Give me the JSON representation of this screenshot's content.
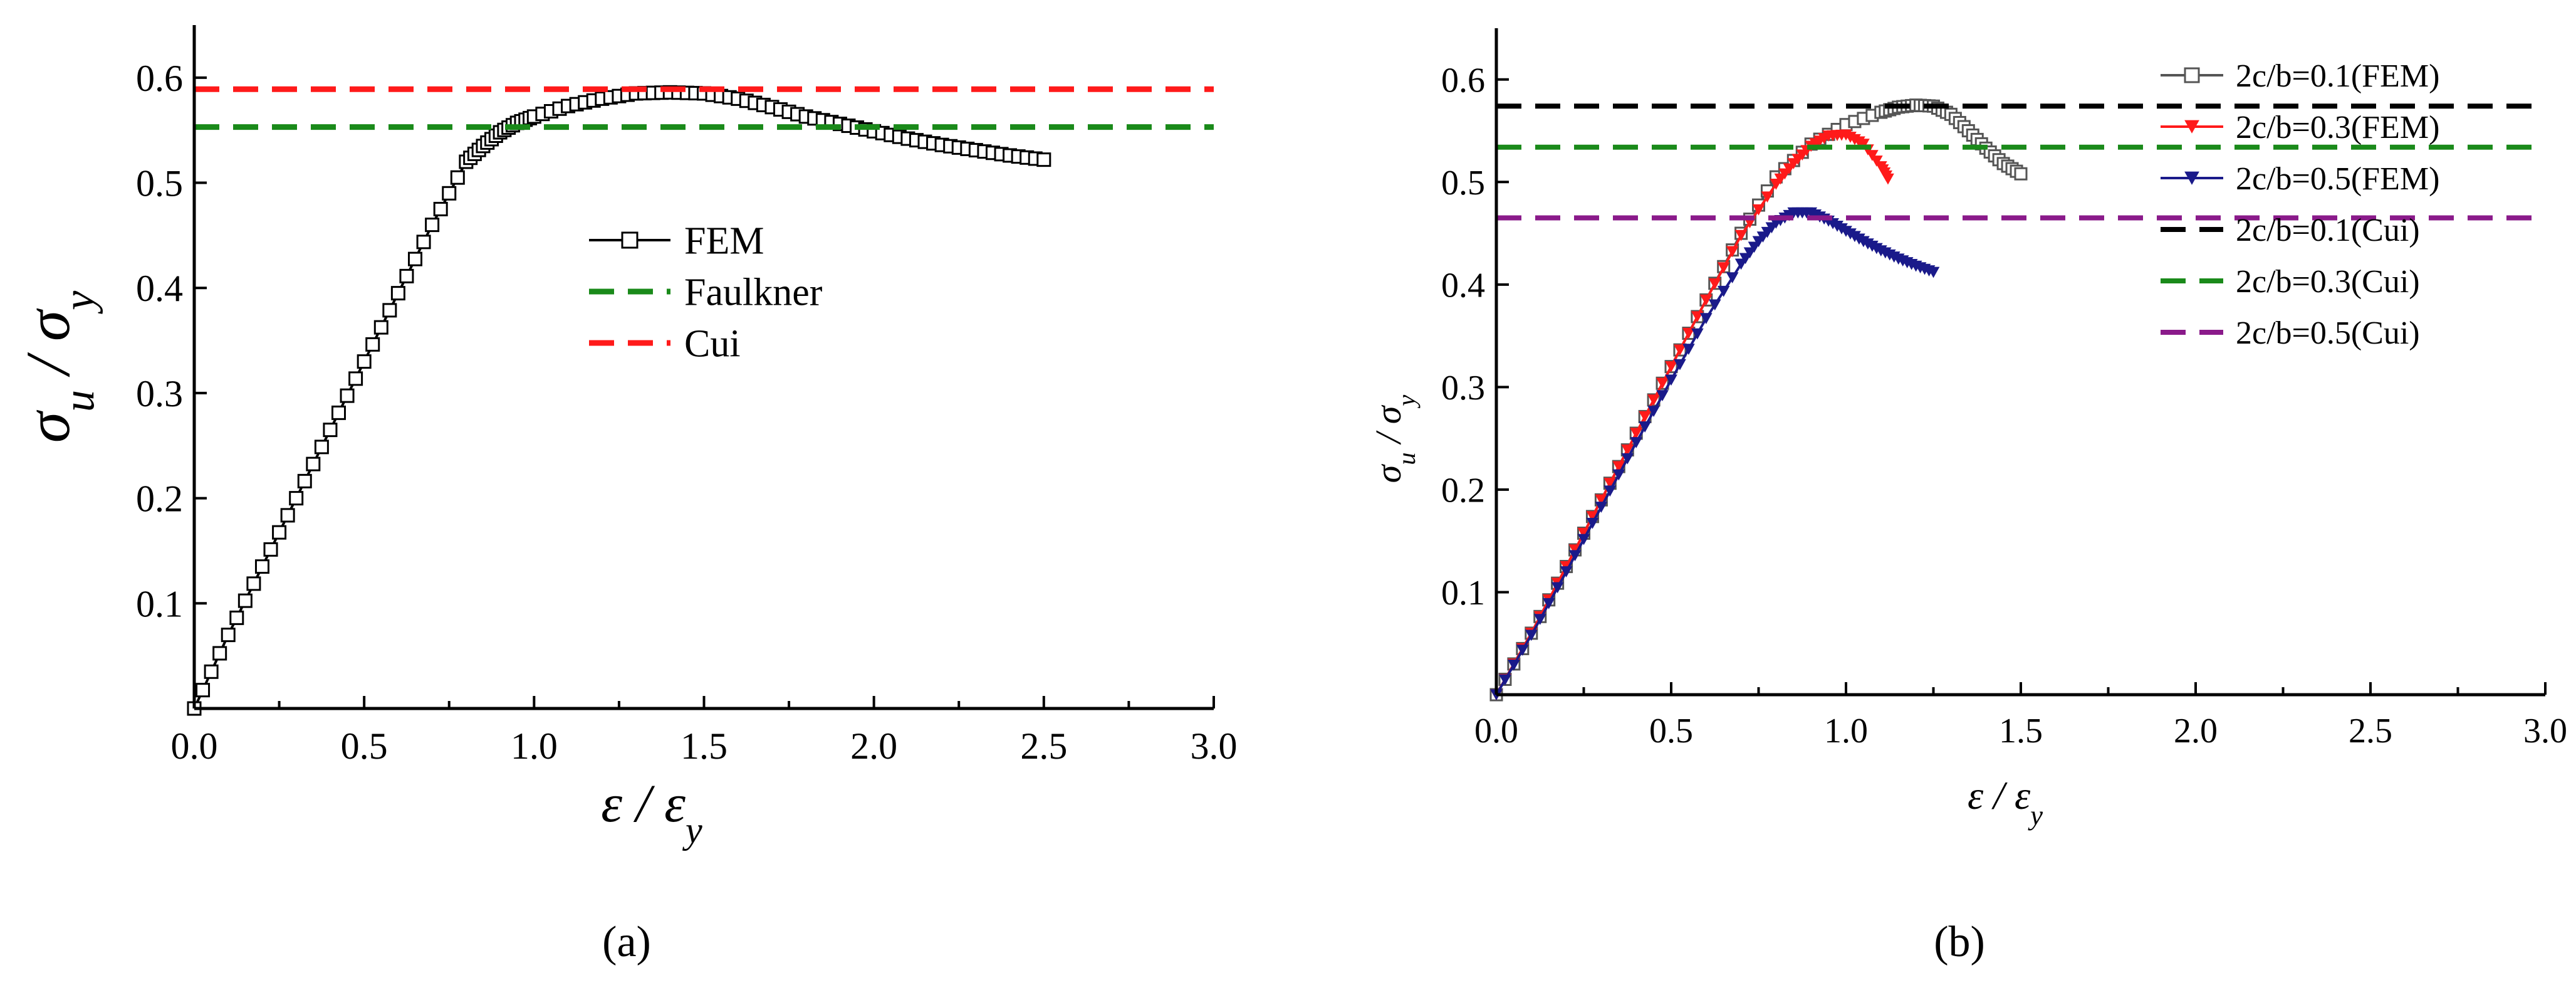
{
  "figure": {
    "panel_a_caption": "(a)",
    "panel_b_caption": "(b)"
  },
  "chart_data": [
    {
      "type": "line",
      "panel": "a",
      "xlabel": "ε / ε_y",
      "ylabel": "σ_u / σ_y",
      "xlim": [
        0,
        3
      ],
      "ylim": [
        0,
        0.65
      ],
      "xticks": [
        "0.0",
        "0.5",
        "1.0",
        "1.5",
        "2.0",
        "2.5",
        "3.0"
      ],
      "yticks": [
        "0.1",
        "0.2",
        "0.3",
        "0.4",
        "0.5",
        "0.6"
      ],
      "legend_position": "center-right",
      "series": [
        {
          "name": "FEM",
          "color": "#000000",
          "marker": "open-square",
          "x": [
            0.0,
            0.1,
            0.2,
            0.3,
            0.4,
            0.5,
            0.6,
            0.7,
            0.8,
            0.85,
            0.9,
            0.95,
            1.0,
            1.1,
            1.2,
            1.3,
            1.4,
            1.5,
            1.6,
            1.7,
            1.8,
            1.9,
            2.0,
            2.1,
            2.2,
            2.3,
            2.4,
            2.5
          ],
          "y": [
            0.0,
            0.07,
            0.135,
            0.2,
            0.265,
            0.33,
            0.395,
            0.46,
            0.52,
            0.535,
            0.548,
            0.557,
            0.563,
            0.573,
            0.58,
            0.585,
            0.586,
            0.585,
            0.58,
            0.572,
            0.563,
            0.556,
            0.549,
            0.542,
            0.536,
            0.531,
            0.526,
            0.522
          ]
        },
        {
          "name": "Faulkner",
          "color": "#1a8a1a",
          "style": "dashed",
          "y": 0.553
        },
        {
          "name": "Cui",
          "color": "#ff1a1a",
          "style": "dashed",
          "y": 0.589
        }
      ]
    },
    {
      "type": "line",
      "panel": "b",
      "xlabel": "ε / ε_y",
      "ylabel": "σ_u / σ_y",
      "xlim": [
        0,
        3
      ],
      "ylim": [
        0,
        0.65
      ],
      "xticks": [
        "0.0",
        "0.5",
        "1.0",
        "1.5",
        "2.0",
        "2.5",
        "3.0"
      ],
      "yticks": [
        "0.1",
        "0.2",
        "0.3",
        "0.4",
        "0.5",
        "0.6"
      ],
      "legend_position": "top-right",
      "series": [
        {
          "name": "2c/b=0.1(FEM)",
          "color": "#555555",
          "marker": "open-square",
          "x": [
            0.0,
            0.1,
            0.2,
            0.3,
            0.4,
            0.5,
            0.6,
            0.7,
            0.8,
            0.9,
            1.0,
            1.1,
            1.15,
            1.2,
            1.25,
            1.3,
            1.35,
            1.4,
            1.45,
            1.5
          ],
          "y": [
            0.0,
            0.06,
            0.125,
            0.19,
            0.255,
            0.32,
            0.385,
            0.45,
            0.505,
            0.537,
            0.556,
            0.568,
            0.573,
            0.575,
            0.574,
            0.566,
            0.55,
            0.533,
            0.518,
            0.508
          ]
        },
        {
          "name": "2c/b=0.3(FEM)",
          "color": "#ff1a1a",
          "marker": "filled-triangle-down",
          "x": [
            0.0,
            0.1,
            0.2,
            0.3,
            0.4,
            0.5,
            0.6,
            0.7,
            0.8,
            0.85,
            0.9,
            0.95,
            1.0,
            1.05,
            1.1,
            1.12
          ],
          "y": [
            0.0,
            0.06,
            0.125,
            0.19,
            0.255,
            0.32,
            0.385,
            0.448,
            0.498,
            0.518,
            0.535,
            0.545,
            0.546,
            0.537,
            0.515,
            0.503
          ]
        },
        {
          "name": "2c/b=0.5(FEM)",
          "color": "#1a1a8a",
          "marker": "filled-triangle-down",
          "x": [
            0.0,
            0.1,
            0.2,
            0.3,
            0.4,
            0.5,
            0.6,
            0.7,
            0.75,
            0.8,
            0.85,
            0.9,
            0.95,
            1.0,
            1.05,
            1.1,
            1.15,
            1.2,
            1.25
          ],
          "y": [
            0.0,
            0.058,
            0.12,
            0.183,
            0.246,
            0.307,
            0.367,
            0.42,
            0.442,
            0.46,
            0.47,
            0.47,
            0.462,
            0.452,
            0.442,
            0.433,
            0.425,
            0.418,
            0.412
          ]
        },
        {
          "name": "2c/b=0.1(Cui)",
          "color": "#000000",
          "style": "dashed",
          "y": 0.574
        },
        {
          "name": "2c/b=0.3(Cui)",
          "color": "#1a8a1a",
          "style": "dashed",
          "y": 0.534
        },
        {
          "name": "2c/b=0.5(Cui)",
          "color": "#8a1a8a",
          "style": "dashed",
          "y": 0.465
        }
      ]
    }
  ]
}
